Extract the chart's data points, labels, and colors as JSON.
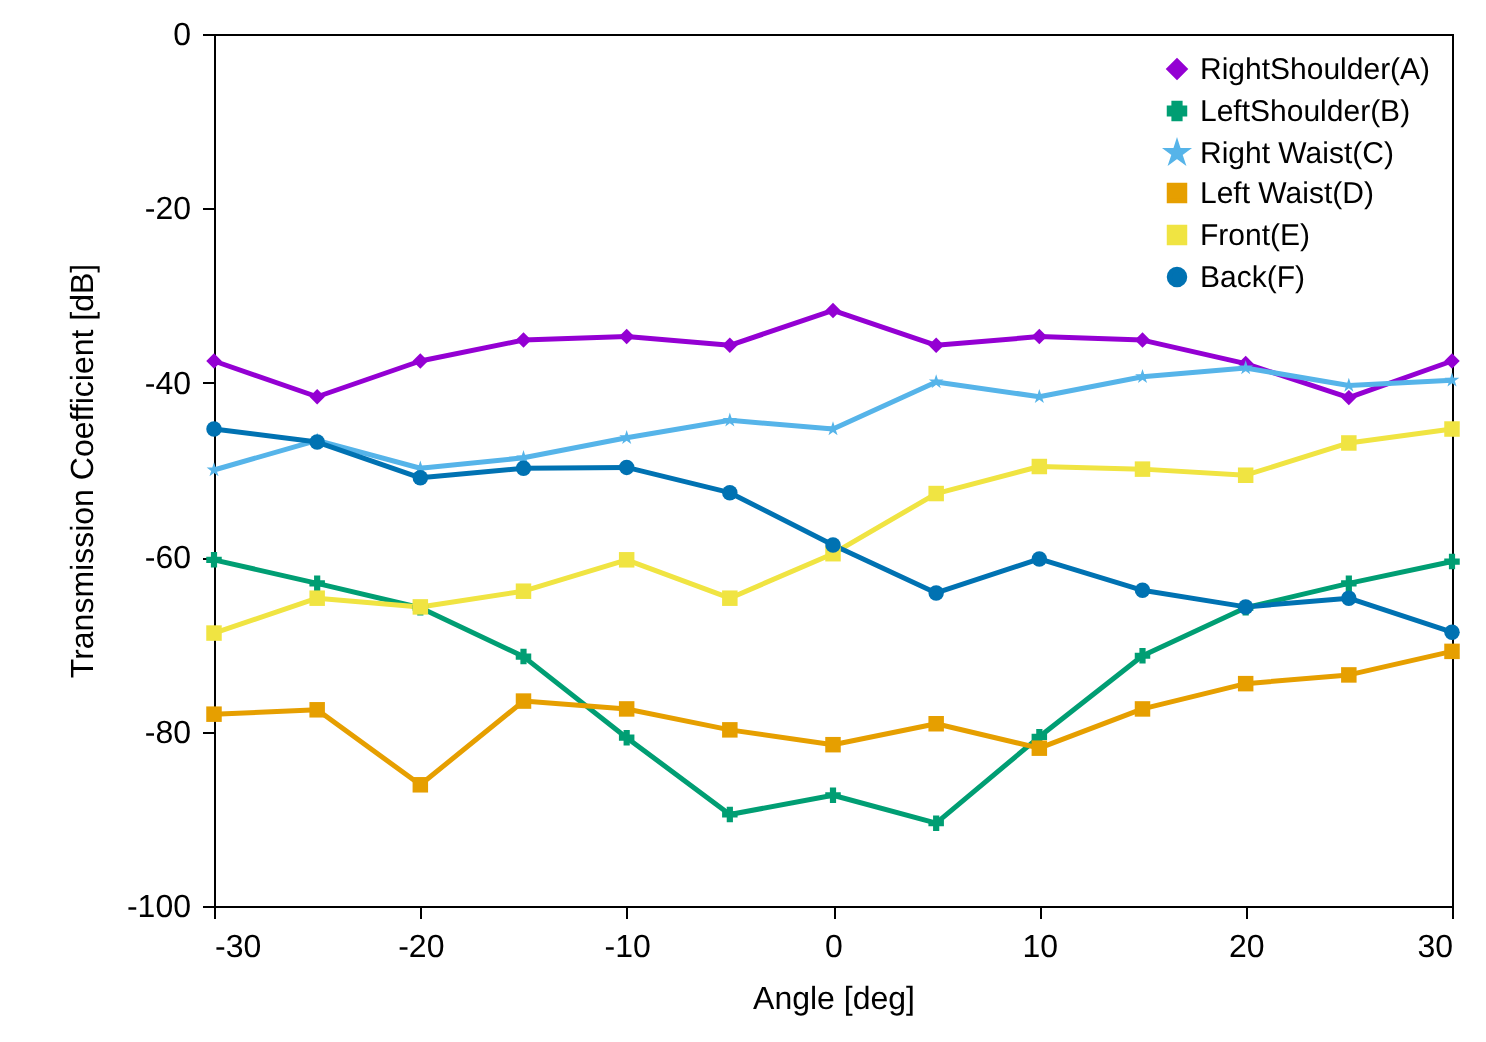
{
  "chart_data": {
    "type": "line",
    "xlabel": "Angle [deg]",
    "ylabel": "Transmission Coefficient [dB]",
    "x": [
      -30,
      -25,
      -20,
      -15,
      -10,
      -5,
      0,
      5,
      10,
      15,
      20,
      25,
      30
    ],
    "xlim": [
      -30,
      30
    ],
    "xticks": [
      -30,
      -20,
      -10,
      0,
      10,
      20,
      30
    ],
    "ylim": [
      -100,
      0
    ],
    "yticks": [
      -100,
      -80,
      -60,
      -40,
      -20,
      0
    ],
    "grid": false,
    "legend": "top right",
    "line_style": "solid",
    "series": [
      {
        "name": "RightShoulder(A)",
        "color": "#9400d3",
        "marker": "diamond",
        "values": [
          -37.5,
          -41.6,
          -37.5,
          -35.1,
          -34.7,
          -35.7,
          -31.7,
          -35.7,
          -34.7,
          -35.1,
          -37.8,
          -41.7,
          -37.5
        ]
      },
      {
        "name": "LeftShoulder(B)",
        "color": "#009e73",
        "marker": "cross",
        "values": [
          -60.3,
          -63,
          -65.8,
          -71.4,
          -80.7,
          -89.5,
          -87.3,
          -90.5,
          -80.6,
          -71.3,
          -65.8,
          -63,
          -60.5
        ]
      },
      {
        "name": "Right Waist(C)",
        "color": "#56b4e9",
        "marker": "star",
        "values": [
          -50,
          -46.6,
          -49.8,
          -48.6,
          -46.3,
          -44.3,
          -45.3,
          -39.9,
          -41.6,
          -39.3,
          -38.3,
          -40.3,
          -39.7
        ]
      },
      {
        "name": "Left Waist(D)",
        "color": "#e69f00",
        "marker": "square",
        "values": [
          -78,
          -77.5,
          -86.1,
          -76.5,
          -77.4,
          -79.8,
          -81.5,
          -79.1,
          -81.9,
          -77.4,
          -74.5,
          -73.5,
          -70.8
        ]
      },
      {
        "name": "Front(E)",
        "color": "#f0e442",
        "marker": "square",
        "values": [
          -68.7,
          -64.7,
          -65.7,
          -63.9,
          -60.3,
          -64.7,
          -59.6,
          -52.7,
          -49.6,
          -49.9,
          -50.6,
          -46.9,
          -45.3
        ]
      },
      {
        "name": "Back(F)",
        "color": "#0072b2",
        "marker": "circle",
        "values": [
          -45.3,
          -46.8,
          -50.9,
          -49.8,
          -49.7,
          -52.6,
          -58.6,
          -64.1,
          -60.2,
          -63.8,
          -65.7,
          -64.7,
          -68.6
        ]
      }
    ]
  }
}
